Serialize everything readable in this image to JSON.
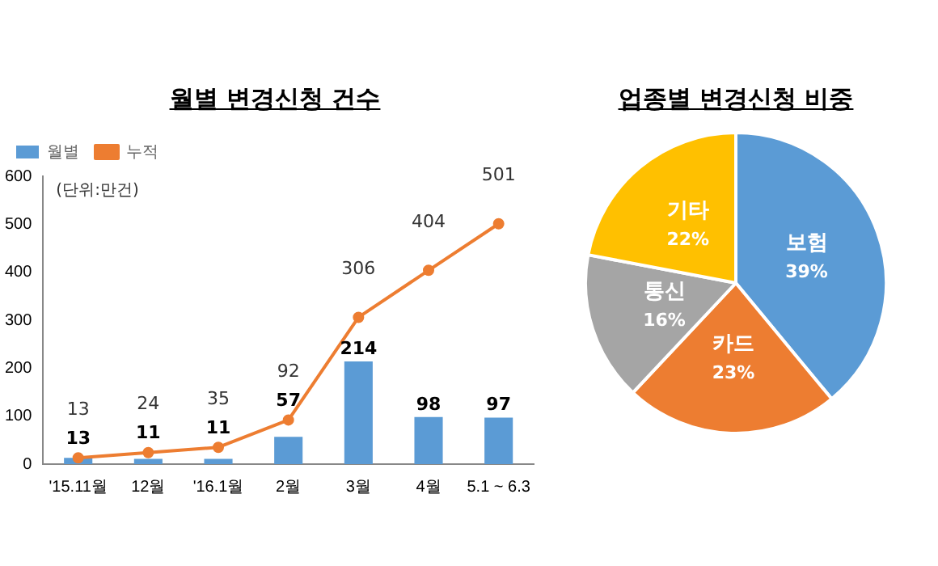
{
  "chart_data": [
    {
      "type": "bar",
      "title": "월별 변경신청 건수",
      "categories": [
        "'15.11월",
        "12월",
        "'16.1월",
        "2월",
        "3월",
        "4월",
        "5.1 ~ 6.3"
      ],
      "series": [
        {
          "name": "월별",
          "type": "bar",
          "color": "#5b9bd5",
          "values": [
            13,
            11,
            11,
            57,
            214,
            98,
            97
          ]
        },
        {
          "name": "누적",
          "type": "line",
          "color": "#ed7d31",
          "values": [
            13,
            24,
            35,
            92,
            306,
            404,
            501
          ]
        }
      ],
      "ylim": [
        0,
        600
      ],
      "yticks": [
        0,
        100,
        200,
        300,
        400,
        500,
        600
      ],
      "grid": false,
      "legend": "top left",
      "marker": "circle",
      "line_style": "solid",
      "data_labels": true,
      "annotations": [
        "(단위:만건)"
      ]
    },
    {
      "type": "pie",
      "title": "업종별 변경신청 비중",
      "categories": [
        "보험",
        "카드",
        "통신",
        "기타"
      ],
      "values": [
        39,
        23,
        16,
        22
      ],
      "colors": [
        "#5b9bd5",
        "#ed7d31",
        "#a5a5a5",
        "#ffc000"
      ],
      "value_labels": [
        "39%",
        "23%",
        "16%",
        "22%"
      ],
      "legend": false
    }
  ]
}
